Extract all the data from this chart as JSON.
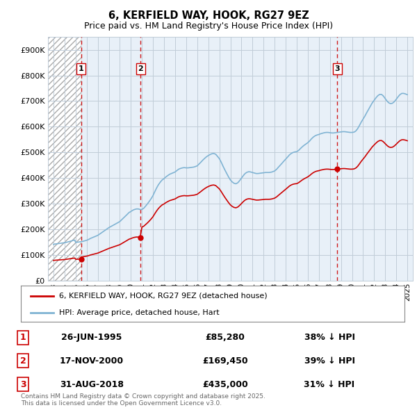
{
  "title": "6, KERFIELD WAY, HOOK, RG27 9EZ",
  "subtitle": "Price paid vs. HM Land Registry's House Price Index (HPI)",
  "legend_entry1": "6, KERFIELD WAY, HOOK, RG27 9EZ (detached house)",
  "legend_entry2": "HPI: Average price, detached house, Hart",
  "transaction_color": "#cc0000",
  "hpi_color": "#7fb3d3",
  "background_color": "#ffffff",
  "plot_bg_color": "#e8f0f8",
  "grid_color": "#c8d8e8",
  "hatch_bg": "#e0e0e0",
  "ylim": [
    0,
    950000
  ],
  "yticks": [
    0,
    100000,
    200000,
    300000,
    400000,
    500000,
    600000,
    700000,
    800000,
    900000
  ],
  "ytick_labels": [
    "£0",
    "£100K",
    "£200K",
    "£300K",
    "£400K",
    "£500K",
    "£600K",
    "£700K",
    "£800K",
    "£900K"
  ],
  "transactions": [
    {
      "date_num": 1995.49,
      "price": 85280,
      "label": "1"
    },
    {
      "date_num": 2000.88,
      "price": 169450,
      "label": "2"
    },
    {
      "date_num": 2018.66,
      "price": 435000,
      "label": "3"
    }
  ],
  "vline_dates": [
    1995.49,
    2000.88,
    2018.66
  ],
  "hatch_end": 1995.49,
  "table_rows": [
    {
      "num": "1",
      "date": "26-JUN-1995",
      "price": "£85,280",
      "hpi": "38% ↓ HPI"
    },
    {
      "num": "2",
      "date": "17-NOV-2000",
      "price": "£169,450",
      "hpi": "39% ↓ HPI"
    },
    {
      "num": "3",
      "date": "31-AUG-2018",
      "price": "£435,000",
      "hpi": "31% ↓ HPI"
    }
  ],
  "footer": "Contains HM Land Registry data © Crown copyright and database right 2025.\nThis data is licensed under the Open Government Licence v3.0.",
  "xlim_start": 1992.5,
  "xlim_end": 2025.5,
  "xticks": [
    1993,
    1994,
    1995,
    1996,
    1997,
    1998,
    1999,
    2000,
    2001,
    2002,
    2003,
    2004,
    2005,
    2006,
    2007,
    2008,
    2009,
    2010,
    2011,
    2012,
    2013,
    2014,
    2015,
    2016,
    2017,
    2018,
    2019,
    2020,
    2021,
    2022,
    2023,
    2024,
    2025
  ]
}
